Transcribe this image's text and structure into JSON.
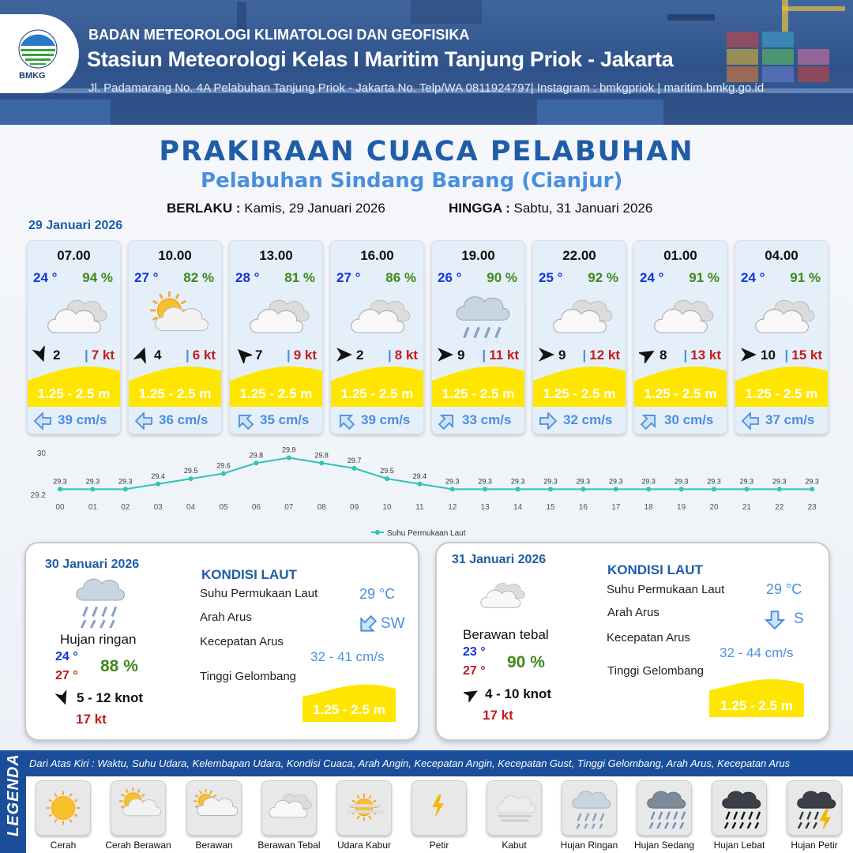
{
  "header": {
    "logo_text": "BMKG",
    "agency": "BADAN METEOROLOGI KLIMATOLOGI DAN GEOFISIKA",
    "station": "Stasiun Meteorologi Kelas I Maritim Tanjung Priok - Jakarta",
    "address": "Jl. Padamarang No. 4A Pelabuhan Tanjung Priok - Jakarta No. Telp/WA 0811924797| Instagram : bmkgpriok | maritim.bmkg.go.id"
  },
  "title": "PRAKIRAAN CUACA PELABUHAN",
  "subtitle": "Pelabuhan Sindang Barang (Cianjur)",
  "validity": {
    "from_label": "BERLAKU :",
    "from_value": "Kamis, 29 Januari 2026",
    "to_label": "HINGGA :",
    "to_value": "Sabtu, 31 Januari 2026"
  },
  "day1_date": "29 Januari 2026",
  "forecasts": [
    {
      "time": "07.00",
      "temp": "24 °",
      "hum": "94 %",
      "icon": "berawan-tebal-icon",
      "wind_dir_deg": 160,
      "wind": "2",
      "gust": "7 kt",
      "wave": "1.25 - 2.5 m",
      "cur_dir_deg": 270,
      "cur": "39 cm/s"
    },
    {
      "time": "10.00",
      "temp": "27 °",
      "hum": "82 %",
      "icon": "cerah-berawan-icon",
      "wind_dir_deg": 20,
      "wind": "4",
      "gust": "6 kt",
      "wave": "1.25 - 2.5 m",
      "cur_dir_deg": 270,
      "cur": "36 cm/s"
    },
    {
      "time": "13.00",
      "temp": "28 °",
      "hum": "81 %",
      "icon": "berawan-tebal-icon",
      "wind_dir_deg": 315,
      "wind": "7",
      "gust": "9 kt",
      "wave": "1.25 - 2.5 m",
      "cur_dir_deg": 315,
      "cur": "35 cm/s"
    },
    {
      "time": "16.00",
      "temp": "27 °",
      "hum": "86 %",
      "icon": "berawan-tebal-icon",
      "wind_dir_deg": 90,
      "wind": "2",
      "gust": "8 kt",
      "wave": "1.25 - 2.5 m",
      "cur_dir_deg": 315,
      "cur": "39 cm/s"
    },
    {
      "time": "19.00",
      "temp": "26 °",
      "hum": "90 %",
      "icon": "hujan-ringan-icon",
      "wind_dir_deg": 90,
      "wind": "9",
      "gust": "11 kt",
      "wave": "1.25 - 2.5 m",
      "cur_dir_deg": 45,
      "cur": "33 cm/s"
    },
    {
      "time": "22.00",
      "temp": "25 °",
      "hum": "92 %",
      "icon": "berawan-tebal-icon",
      "wind_dir_deg": 90,
      "wind": "9",
      "gust": "12 kt",
      "wave": "1.25 - 2.5 m",
      "cur_dir_deg": 90,
      "cur": "32 cm/s"
    },
    {
      "time": "01.00",
      "temp": "24 °",
      "hum": "91 %",
      "icon": "berawan-tebal-icon",
      "wind_dir_deg": 60,
      "wind": "8",
      "gust": "13 kt",
      "wave": "1.25 - 2.5 m",
      "cur_dir_deg": 45,
      "cur": "30 cm/s"
    },
    {
      "time": "04.00",
      "temp": "24 °",
      "hum": "91 %",
      "icon": "berawan-tebal-icon",
      "wind_dir_deg": 90,
      "wind": "10",
      "gust": "15 kt",
      "wave": "1.25 - 2.5 m",
      "cur_dir_deg": 270,
      "cur": "37 cm/s"
    }
  ],
  "chart_data": {
    "type": "line",
    "x": [
      "00",
      "01",
      "02",
      "03",
      "04",
      "05",
      "06",
      "07",
      "08",
      "09",
      "10",
      "11",
      "12",
      "13",
      "14",
      "15",
      "16",
      "17",
      "18",
      "19",
      "20",
      "21",
      "22",
      "23"
    ],
    "series": [
      {
        "name": "Suhu Permukaan Laut",
        "values": [
          29.3,
          29.3,
          29.3,
          29.4,
          29.5,
          29.6,
          29.8,
          29.9,
          29.8,
          29.7,
          29.5,
          29.4,
          29.3,
          29.3,
          29.3,
          29.3,
          29.3,
          29.3,
          29.3,
          29.3,
          29.3,
          29.3,
          29.3,
          29.3
        ]
      }
    ],
    "y_ticks": [
      "30",
      "29.2"
    ],
    "ylim": [
      29.2,
      30
    ],
    "legend": "bottom",
    "line_color": "#2ec4b6"
  },
  "day2": {
    "date": "30 Januari 2026",
    "icon": "hujan-ringan-icon",
    "condition": "Hujan ringan",
    "tmin": "24 °",
    "tmax": "27 °",
    "hum": "88 %",
    "wind_dir_deg": 160,
    "wind": "5  - 12 knot",
    "gust": "17 kt",
    "kondisi_title": "KONDISI LAUT",
    "sst_label": "Suhu Permukaan Laut",
    "sst": "29 °C",
    "cur_dir_label": "Arah Arus",
    "cur_dir": "SW",
    "cur_dir_deg": 225,
    "cur_spd_label": "Kecepatan Arus",
    "cur_spd": "32  - 41 cm/s",
    "wave_label": "Tinggi Gelombang",
    "wave": "1.25 - 2.5 m"
  },
  "day3": {
    "date": "31 Januari 2026",
    "icon": "berawan-tebal-icon",
    "condition": "Berawan tebal",
    "tmin": "23 °",
    "tmax": "27 °",
    "hum": "90 %",
    "wind_dir_deg": 60,
    "wind": "4  - 10 knot",
    "gust": "17 kt",
    "kondisi_title": "KONDISI LAUT",
    "sst_label": "Suhu Permukaan Laut",
    "sst": "29 °C",
    "cur_dir_label": "Arah Arus",
    "cur_dir": "S",
    "cur_dir_deg": 180,
    "cur_spd_label": "Kecepatan Arus",
    "cur_spd": "32  - 44 cm/s",
    "wave_label": "Tinggi Gelombang",
    "wave": "1.25 - 2.5 m"
  },
  "legend": {
    "title": "LEGENDA",
    "description": "Dari Atas Kiri : Waktu, Suhu Udara, Kelembapan Udara, Kondisi Cuaca, Arah Angin, Kecepatan Angin, Kecepatan Gust, Tinggi Gelombang, Arah Arus, Kecepatan Arus",
    "items": [
      {
        "label": "Cerah",
        "icon": "cerah-icon"
      },
      {
        "label": "Cerah Berawan",
        "icon": "cerah-berawan-icon"
      },
      {
        "label": "Berawan",
        "icon": "berawan-icon"
      },
      {
        "label": "Berawan Tebal",
        "icon": "berawan-tebal-icon"
      },
      {
        "label": "Udara Kabur",
        "icon": "udara-kabur-icon"
      },
      {
        "label": "Petir",
        "icon": "petir-icon"
      },
      {
        "label": "Kabut",
        "icon": "kabut-icon"
      },
      {
        "label": "Hujan Ringan",
        "icon": "hujan-ringan-icon"
      },
      {
        "label": "Hujan Sedang",
        "icon": "hujan-sedang-icon"
      },
      {
        "label": "Hujan Lebat",
        "icon": "hujan-lebat-icon"
      },
      {
        "label": "Hujan Petir",
        "icon": "hujan-petir-icon"
      }
    ]
  },
  "colors": {
    "title": "#1f5da8",
    "temp": "#1535d9",
    "hum": "#3f8a1a",
    "gust": "#c41b1b",
    "wave": "#ffe600",
    "current": "#4a8fde",
    "legend_bar": "#1a4e9a"
  }
}
